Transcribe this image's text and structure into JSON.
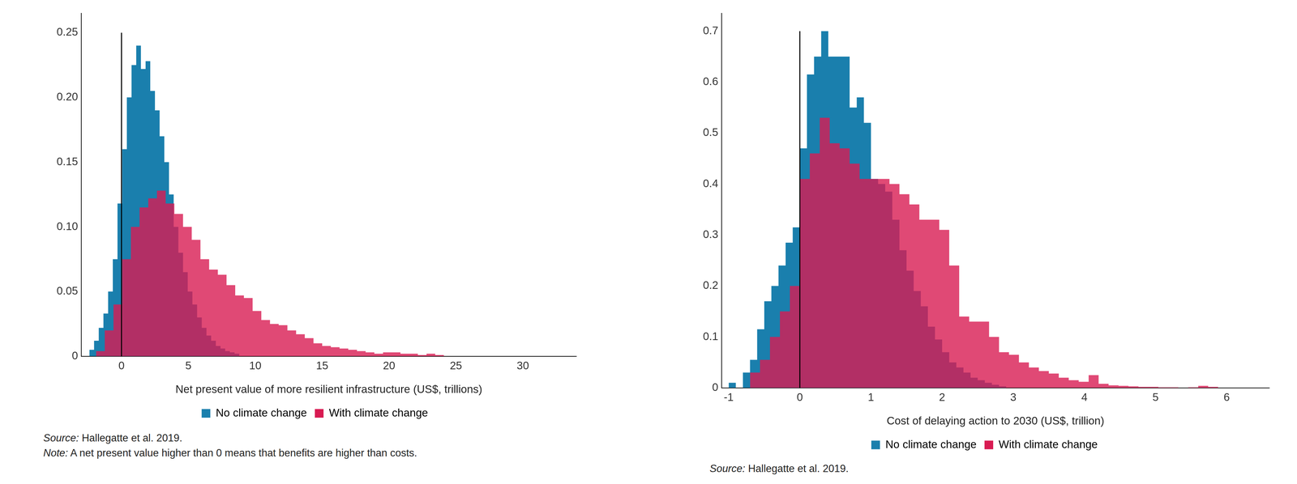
{
  "chart_data": [
    {
      "type": "histogram",
      "x_label": "Net present value of more resilient infrastructure (US$, trillions)",
      "series": [
        {
          "name": "No climate change",
          "color": "#1a7fad",
          "bins": [
            -2.4,
            -2.05,
            -1.7,
            -1.35,
            -1,
            -0.65,
            -0.3,
            0.05,
            0.4,
            0.75,
            1.1,
            1.45,
            1.8,
            2.15,
            2.5,
            2.85,
            3.2,
            3.55,
            3.9,
            4.25,
            4.6,
            4.95,
            5.3,
            5.65,
            6,
            6.35,
            6.7,
            7.05,
            7.4,
            7.75,
            8.1,
            8.45,
            8.8
          ],
          "values": [
            0.005,
            0.012,
            0.022,
            0.033,
            0.05,
            0.075,
            0.118,
            0.16,
            0.2,
            0.225,
            0.24,
            0.222,
            0.228,
            0.205,
            0.19,
            0.17,
            0.15,
            0.125,
            0.1,
            0.08,
            0.065,
            0.05,
            0.04,
            0.03,
            0.022,
            0.016,
            0.012,
            0.008,
            0.006,
            0.004,
            0.003,
            0.002
          ]
        },
        {
          "name": "With climate change",
          "color": "#d81b52",
          "bins": [
            -1.9,
            -1.25,
            -0.6,
            0.05,
            0.7,
            1.35,
            2,
            2.65,
            3.3,
            3.95,
            4.6,
            5.25,
            5.9,
            6.55,
            7.2,
            7.85,
            8.5,
            9.15,
            9.8,
            10.45,
            11.1,
            11.75,
            12.4,
            13.05,
            13.7,
            14.35,
            15,
            15.65,
            16.3,
            16.95,
            17.6,
            18.25,
            18.9,
            19.55,
            20.2,
            20.85,
            21.5,
            22.15,
            22.8,
            23.45,
            24.1
          ],
          "values": [
            0.004,
            0.02,
            0.04,
            0.075,
            0.1,
            0.115,
            0.122,
            0.128,
            0.118,
            0.11,
            0.1,
            0.09,
            0.075,
            0.067,
            0.063,
            0.055,
            0.047,
            0.045,
            0.035,
            0.028,
            0.025,
            0.024,
            0.02,
            0.017,
            0.014,
            0.01,
            0.008,
            0.007,
            0.006,
            0.005,
            0.004,
            0.003,
            0.002,
            0.003,
            0.003,
            0.002,
            0.002,
            0.001,
            0.002,
            0.001
          ]
        }
      ],
      "xlim": [
        -3,
        34
      ],
      "xticks": [
        0,
        5,
        10,
        15,
        20,
        25,
        30
      ],
      "ylim": [
        0,
        0.265
      ],
      "yticks": [
        0,
        0.05,
        {
          "value": 0.1,
          "label": "0.10"
        },
        0.15,
        {
          "value": 0.2,
          "label": "0.20"
        },
        0.25
      ],
      "grid": false,
      "legend": "bottom",
      "reference_line": {
        "x": 0,
        "ymax": 0.25
      },
      "source": "Source: Hallegatte et al. 2019.",
      "note": "Note: A net present value higher than 0 means that benefits are higher than costs."
    },
    {
      "type": "histogram",
      "x_label": "Cost of delaying action to 2030 (US$, trillion)",
      "series": [
        {
          "name": "No climate change",
          "color": "#1a7fad",
          "bins": [
            -1,
            -0.9,
            -0.8,
            -0.7,
            -0.6,
            -0.5,
            -0.4,
            -0.3,
            -0.2,
            -0.1,
            0,
            0.1,
            0.2,
            0.3,
            0.4,
            0.5,
            0.6,
            0.7,
            0.8,
            0.9,
            1,
            1.1,
            1.2,
            1.3,
            1.4,
            1.5,
            1.6,
            1.7,
            1.8,
            1.9,
            2,
            2.1,
            2.2,
            2.3,
            2.4,
            2.5,
            2.6,
            2.7,
            2.8,
            2.9
          ],
          "values": [
            0.01,
            0,
            0.03,
            0.055,
            0.115,
            0.17,
            0.2,
            0.24,
            0.285,
            0.315,
            0.47,
            0.615,
            0.65,
            0.7,
            0.65,
            0.65,
            0.65,
            0.55,
            0.57,
            0.52,
            0.41,
            0.4,
            0.385,
            0.33,
            0.27,
            0.23,
            0.19,
            0.16,
            0.12,
            0.095,
            0.07,
            0.05,
            0.04,
            0.03,
            0.02,
            0.015,
            0.01,
            0.006,
            0.003
          ]
        },
        {
          "name": "With climate change",
          "color": "#d81b52",
          "bins": [
            -0.7,
            -0.56,
            -0.42,
            -0.28,
            -0.14,
            0,
            0.14,
            0.28,
            0.42,
            0.56,
            0.7,
            0.84,
            0.98,
            1.12,
            1.26,
            1.4,
            1.54,
            1.68,
            1.82,
            1.96,
            2.1,
            2.24,
            2.38,
            2.52,
            2.66,
            2.8,
            2.94,
            3.08,
            3.22,
            3.36,
            3.5,
            3.64,
            3.78,
            3.92,
            4.06,
            4.2,
            4.34,
            4.48,
            4.62,
            4.76,
            4.9,
            5.04,
            5.18,
            5.32,
            5.46,
            5.6,
            5.74,
            5.88
          ],
          "values": [
            0.03,
            0.055,
            0.1,
            0.15,
            0.2,
            0.41,
            0.46,
            0.53,
            0.48,
            0.47,
            0.44,
            0.41,
            0.41,
            0.41,
            0.4,
            0.38,
            0.36,
            0.33,
            0.33,
            0.31,
            0.24,
            0.14,
            0.13,
            0.13,
            0.1,
            0.07,
            0.065,
            0.05,
            0.04,
            0.033,
            0.028,
            0.02,
            0.015,
            0.012,
            0.025,
            0.008,
            0.005,
            0.004,
            0.003,
            0.002,
            0.002,
            0.001,
            0.001,
            0,
            0.001,
            0.004,
            0.002
          ]
        }
      ],
      "xlim": [
        -1.1,
        6.6
      ],
      "xticks": [
        -1,
        0,
        1,
        2,
        3,
        4,
        5,
        6
      ],
      "ylim": [
        0,
        0.735
      ],
      "yticks": [
        0,
        0.1,
        0.2,
        0.3,
        0.4,
        0.5,
        0.6,
        0.7
      ],
      "grid": false,
      "legend": "bottom",
      "reference_line": {
        "x": 0,
        "ymax": 0.7
      },
      "source": "Source: Hallegatte et al. 2019."
    }
  ]
}
